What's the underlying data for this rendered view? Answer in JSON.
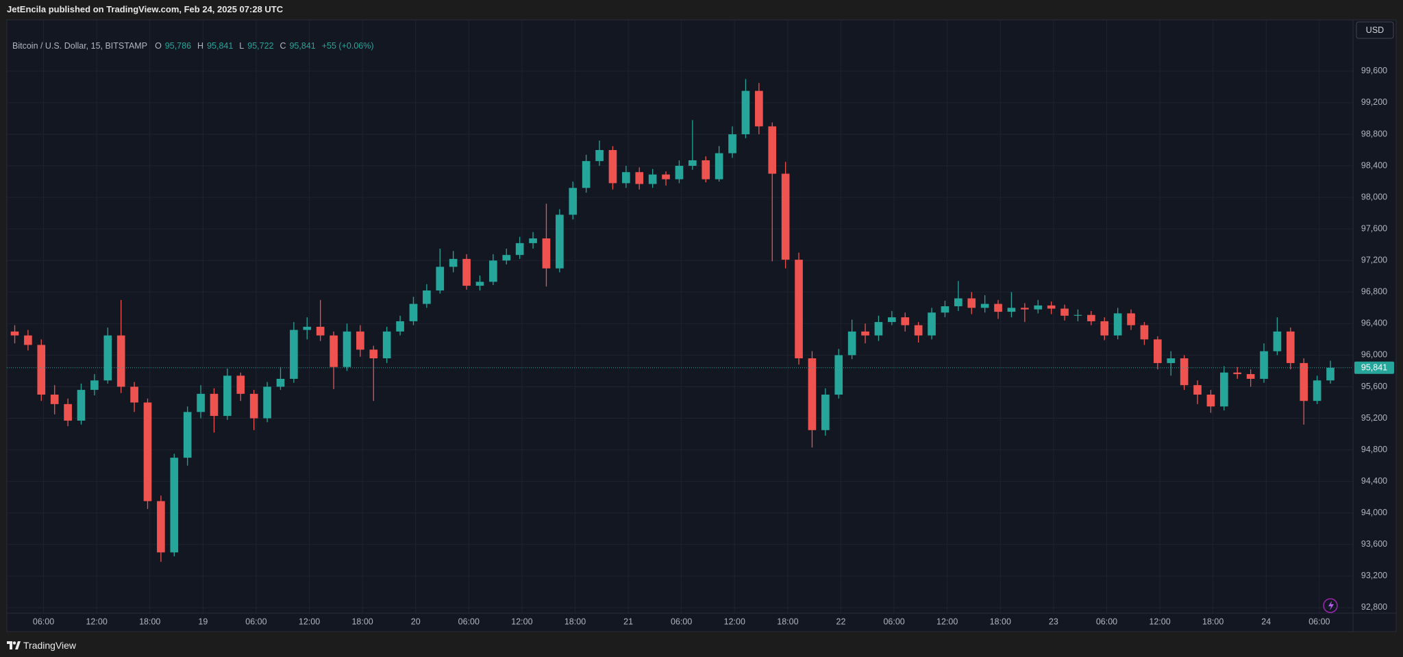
{
  "header": {
    "published": "JetEncila published on TradingView.com, Feb 24, 2025 07:28 UTC"
  },
  "legend": {
    "symbol": "Bitcoin / U.S. Dollar, 15, BITSTAMP",
    "ohlc": [
      {
        "key": "O",
        "value": "95,786"
      },
      {
        "key": "H",
        "value": "95,841"
      },
      {
        "key": "L",
        "value": "95,722"
      },
      {
        "key": "C",
        "value": "95,841"
      }
    ],
    "change": "+55 (+0.06%)"
  },
  "currency": "USD",
  "footer": {
    "brand": "TradingView"
  },
  "chart_data": {
    "type": "candlestick",
    "grid": true,
    "up_color": "#26a69a",
    "down_color": "#ef5350",
    "xlim": [
      1.86,
      153.8
    ],
    "ylim": [
      92730,
      100250
    ],
    "xticks": [
      {
        "value": 6,
        "label": "06:00"
      },
      {
        "value": 12,
        "label": "12:00"
      },
      {
        "value": 18,
        "label": "18:00"
      },
      {
        "value": 24,
        "label": "19"
      },
      {
        "value": 30,
        "label": "06:00"
      },
      {
        "value": 36,
        "label": "12:00"
      },
      {
        "value": 42,
        "label": "18:00"
      },
      {
        "value": 48,
        "label": "20"
      },
      {
        "value": 54,
        "label": "06:00"
      },
      {
        "value": 60,
        "label": "12:00"
      },
      {
        "value": 66,
        "label": "18:00"
      },
      {
        "value": 72,
        "label": "21"
      },
      {
        "value": 78,
        "label": "06:00"
      },
      {
        "value": 84,
        "label": "12:00"
      },
      {
        "value": 90,
        "label": "18:00"
      },
      {
        "value": 96,
        "label": "22"
      },
      {
        "value": 102,
        "label": "06:00"
      },
      {
        "value": 108,
        "label": "12:00"
      },
      {
        "value": 114,
        "label": "18:00"
      },
      {
        "value": 120,
        "label": "23"
      },
      {
        "value": 126,
        "label": "06:00"
      },
      {
        "value": 132,
        "label": "12:00"
      },
      {
        "value": 138,
        "label": "18:00"
      },
      {
        "value": 144,
        "label": "24"
      },
      {
        "value": 150,
        "label": "06:00"
      }
    ],
    "yticks": [
      {
        "value": 92800,
        "label": "92,800"
      },
      {
        "value": 93200,
        "label": "93,200"
      },
      {
        "value": 93600,
        "label": "93,600"
      },
      {
        "value": 94000,
        "label": "94,000"
      },
      {
        "value": 94400,
        "label": "94,400"
      },
      {
        "value": 94800,
        "label": "94,800"
      },
      {
        "value": 95200,
        "label": "95,200"
      },
      {
        "value": 95600,
        "label": "95,600"
      },
      {
        "value": 96000,
        "label": "96,000"
      },
      {
        "value": 96400,
        "label": "96,400"
      },
      {
        "value": 96800,
        "label": "96,800"
      },
      {
        "value": 97200,
        "label": "97,200"
      },
      {
        "value": 97600,
        "label": "97,600"
      },
      {
        "value": 98000,
        "label": "98,000"
      },
      {
        "value": 98400,
        "label": "98,400"
      },
      {
        "value": 98800,
        "label": "98,800"
      },
      {
        "value": 99200,
        "label": "99,200"
      },
      {
        "value": 99600,
        "label": "99,600"
      }
    ],
    "last_price": {
      "value": 95841,
      "label": "95,841"
    },
    "x": [
      2.75,
      4.25,
      5.75,
      7.25,
      8.75,
      10.25,
      11.75,
      13.25,
      14.75,
      16.25,
      17.75,
      19.25,
      20.75,
      22.25,
      23.75,
      25.25,
      26.75,
      28.25,
      29.75,
      31.25,
      32.75,
      34.25,
      35.75,
      37.25,
      38.75,
      40.25,
      41.75,
      43.25,
      44.75,
      46.25,
      47.75,
      49.25,
      50.75,
      52.25,
      53.75,
      55.25,
      56.75,
      58.25,
      59.75,
      61.25,
      62.75,
      64.25,
      65.75,
      67.25,
      68.75,
      70.25,
      71.75,
      73.25,
      74.75,
      76.25,
      77.75,
      79.25,
      80.75,
      82.25,
      83.75,
      85.25,
      86.75,
      88.25,
      89.75,
      91.25,
      92.75,
      94.25,
      95.75,
      97.25,
      98.75,
      100.25,
      101.75,
      103.25,
      104.75,
      106.25,
      107.75,
      109.25,
      110.75,
      112.25,
      113.75,
      115.25,
      116.75,
      118.25,
      119.75,
      121.25,
      122.75,
      124.25,
      125.75,
      127.25,
      128.75,
      130.25,
      131.75,
      133.25,
      134.75,
      136.25,
      137.75,
      139.25,
      140.75,
      142.25,
      143.75,
      145.25,
      146.75,
      148.25,
      149.75,
      151.25
    ],
    "open": [
      96300,
      96250,
      96130,
      95500,
      95380,
      95170,
      95560,
      95680,
      96250,
      95600,
      95400,
      94150,
      93500,
      94700,
      95280,
      95510,
      95230,
      95740,
      95510,
      95200,
      95600,
      95700,
      96320,
      96360,
      96250,
      95850,
      96300,
      96070,
      95960,
      96300,
      96430,
      96650,
      96820,
      97120,
      97220,
      96880,
      96930,
      97200,
      97270,
      97420,
      97480,
      97100,
      97780,
      98120,
      98460,
      98600,
      98180,
      98320,
      98170,
      98290,
      98230,
      98400,
      98470,
      98230,
      98560,
      98800,
      99350,
      98900,
      98300,
      97210,
      95960,
      95050,
      95500,
      96000,
      96300,
      96250,
      96420,
      96480,
      96380,
      96250,
      96540,
      96620,
      96720,
      96600,
      96650,
      96550,
      96600,
      96580,
      96630,
      96590,
      96500,
      96510,
      96430,
      96250,
      96530,
      96380,
      96200,
      95900,
      95960,
      95620,
      95500,
      95350,
      95780,
      95760,
      95700,
      96050,
      96300,
      95900,
      95420,
      95680
    ],
    "high": [
      96380,
      96320,
      96200,
      95620,
      95450,
      95640,
      95760,
      96350,
      96700,
      95660,
      95450,
      94220,
      94750,
      95350,
      95620,
      95580,
      95830,
      95780,
      95560,
      95660,
      95850,
      96420,
      96480,
      96700,
      96300,
      96400,
      96380,
      96120,
      96360,
      96500,
      96740,
      96900,
      97350,
      97320,
      97280,
      97010,
      97280,
      97350,
      97500,
      97560,
      97920,
      97850,
      98200,
      98540,
      98720,
      98650,
      98400,
      98380,
      98360,
      98330,
      98470,
      98980,
      98520,
      98650,
      98900,
      99500,
      99450,
      98950,
      98450,
      97300,
      96050,
      95580,
      96080,
      96450,
      96400,
      96500,
      96560,
      96540,
      96420,
      96600,
      96690,
      96940,
      96800,
      96760,
      96700,
      96800,
      96660,
      96700,
      96680,
      96640,
      96580,
      96560,
      96480,
      96600,
      96580,
      96420,
      96240,
      96050,
      96000,
      95680,
      95560,
      95860,
      95850,
      95820,
      96150,
      96480,
      96350,
      95960,
      95740,
      95930
    ],
    "low": [
      96150,
      96060,
      95420,
      95250,
      95100,
      95120,
      95490,
      95640,
      95520,
      95280,
      94050,
      93380,
      93450,
      94600,
      95200,
      95020,
      95180,
      95420,
      95050,
      95150,
      95560,
      95650,
      96200,
      96180,
      95570,
      95800,
      95980,
      95420,
      95900,
      96250,
      96380,
      96600,
      96780,
      97050,
      96830,
      96820,
      96890,
      97150,
      97220,
      97350,
      96870,
      97050,
      97720,
      98060,
      98400,
      98100,
      98120,
      98100,
      98120,
      98150,
      98180,
      98350,
      98190,
      98200,
      98500,
      98750,
      98800,
      97190,
      97100,
      95880,
      94830,
      94980,
      95450,
      95950,
      96150,
      96180,
      96380,
      96300,
      96160,
      96200,
      96480,
      96560,
      96520,
      96540,
      96460,
      96480,
      96420,
      96530,
      96520,
      96440,
      96430,
      96380,
      96190,
      96200,
      96320,
      96130,
      95820,
      95740,
      95560,
      95380,
      95270,
      95300,
      95700,
      95600,
      95650,
      96000,
      95820,
      95120,
      95380,
      95640
    ],
    "close": [
      96250,
      96130,
      95500,
      95380,
      95170,
      95560,
      95680,
      96250,
      95600,
      95400,
      94150,
      93500,
      94700,
      95280,
      95510,
      95230,
      95740,
      95510,
      95200,
      95600,
      95700,
      96320,
      96360,
      96250,
      95850,
      96300,
      96070,
      95960,
      96300,
      96430,
      96650,
      96820,
      97120,
      97220,
      96880,
      96930,
      97200,
      97270,
      97420,
      97480,
      97100,
      97780,
      98120,
      98460,
      98600,
      98180,
      98320,
      98170,
      98290,
      98230,
      98400,
      98470,
      98230,
      98560,
      98800,
      99350,
      98900,
      98300,
      97210,
      95960,
      95050,
      95500,
      96000,
      96300,
      96250,
      96420,
      96480,
      96380,
      96250,
      96540,
      96620,
      96720,
      96600,
      96650,
      96550,
      96600,
      96580,
      96630,
      96590,
      96500,
      96510,
      96430,
      96250,
      96530,
      96380,
      96200,
      95900,
      95960,
      95620,
      95500,
      95350,
      95780,
      95760,
      95700,
      96050,
      96300,
      95900,
      95420,
      95680,
      95841
    ]
  }
}
